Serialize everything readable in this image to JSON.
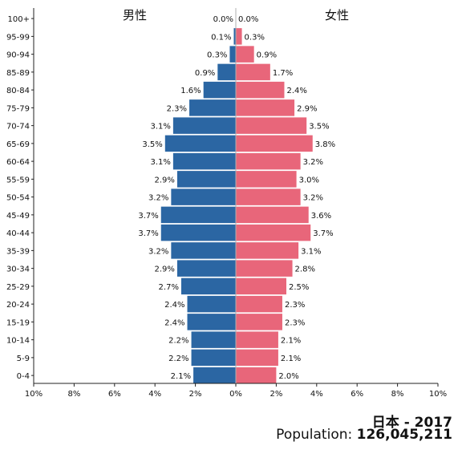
{
  "chart_data": {
    "type": "bar",
    "orientation": "horizontal",
    "layout": "population-pyramid",
    "categories": [
      "100+",
      "95-99",
      "90-94",
      "85-89",
      "80-84",
      "75-79",
      "70-74",
      "65-69",
      "60-64",
      "55-59",
      "50-54",
      "45-49",
      "40-44",
      "35-39",
      "30-34",
      "25-29",
      "20-24",
      "15-19",
      "10-14",
      "5-9",
      "0-4"
    ],
    "series": [
      {
        "name": "男性",
        "side": "left",
        "color": "#2b66a3",
        "values": [
          0.0,
          0.1,
          0.3,
          0.9,
          1.6,
          2.3,
          3.1,
          3.5,
          3.1,
          2.9,
          3.2,
          3.7,
          3.7,
          3.2,
          2.9,
          2.7,
          2.4,
          2.4,
          2.2,
          2.2,
          2.1
        ],
        "labels": [
          "0.0%",
          "0.1%",
          "0.3%",
          "0.9%",
          "1.6%",
          "2.3%",
          "3.1%",
          "3.5%",
          "3.1%",
          "2.9%",
          "3.2%",
          "3.7%",
          "3.7%",
          "3.2%",
          "2.9%",
          "2.7%",
          "2.4%",
          "2.4%",
          "2.2%",
          "2.2%",
          "2.1%"
        ]
      },
      {
        "name": "女性",
        "side": "right",
        "color": "#e8667a",
        "values": [
          0.0,
          0.3,
          0.9,
          1.7,
          2.4,
          2.9,
          3.5,
          3.8,
          3.2,
          3.0,
          3.2,
          3.6,
          3.7,
          3.1,
          2.8,
          2.5,
          2.3,
          2.3,
          2.1,
          2.1,
          2.0
        ],
        "labels": [
          "0.0%",
          "0.3%",
          "0.9%",
          "1.7%",
          "2.4%",
          "2.9%",
          "3.5%",
          "3.8%",
          "3.2%",
          "3.0%",
          "3.2%",
          "3.6%",
          "3.7%",
          "3.1%",
          "2.8%",
          "2.5%",
          "2.3%",
          "2.3%",
          "2.1%",
          "2.1%",
          "2.0%"
        ]
      }
    ],
    "xlim": [
      -10,
      10
    ],
    "x_ticks": [
      -10,
      -8,
      -6,
      -4,
      -2,
      0,
      2,
      4,
      6,
      8,
      10
    ],
    "x_tick_labels": [
      "10%",
      "8%",
      "6%",
      "4%",
      "2%",
      "0%",
      "2%",
      "4%",
      "6%",
      "8%",
      "10%"
    ],
    "grid": false,
    "legend": "none"
  },
  "caption": {
    "country": "日本 - 2017",
    "population_label": "Population: ",
    "population_value": "126,045,211"
  }
}
